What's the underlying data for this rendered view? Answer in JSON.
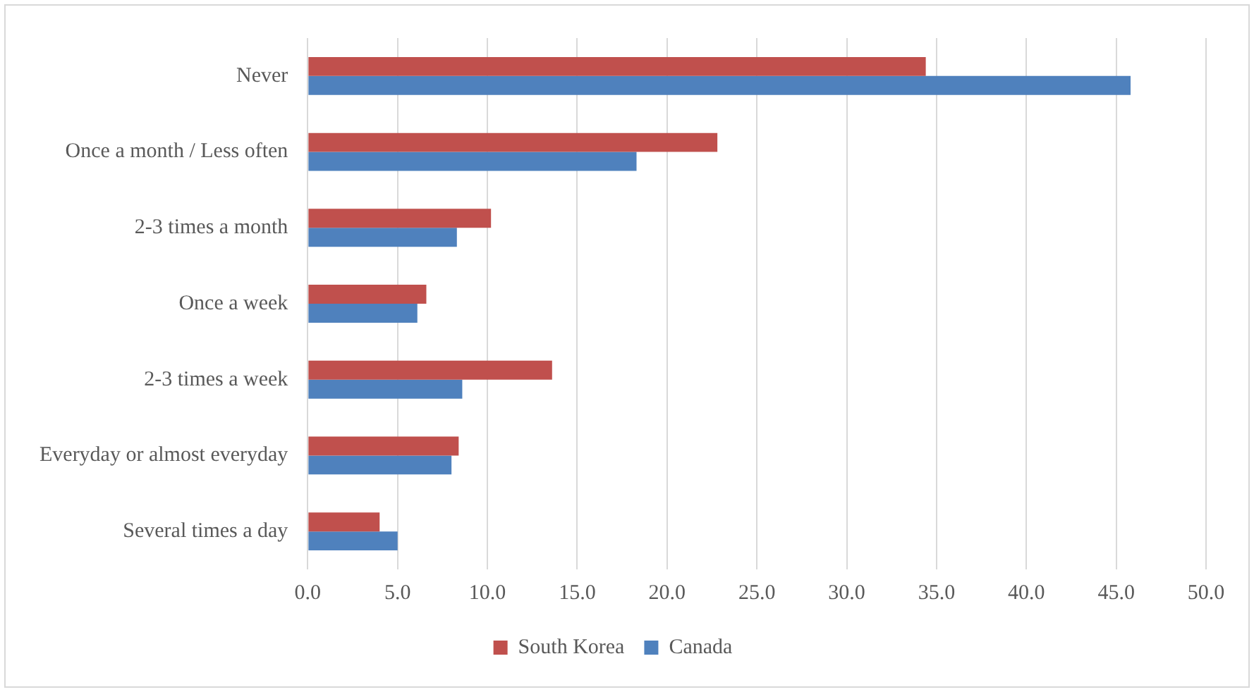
{
  "chart_data": {
    "type": "bar",
    "orientation": "horizontal",
    "categories": [
      "Never",
      "Once a month / Less often",
      "2-3 times a month",
      "Once a week",
      "2-3 times a week",
      "Everyday or almost everyday",
      "Several times a day"
    ],
    "series": [
      {
        "name": "South Korea",
        "color": "#c0504d",
        "values": [
          34.4,
          22.8,
          10.2,
          6.6,
          13.6,
          8.4,
          4.0
        ]
      },
      {
        "name": "Canada",
        "color": "#4f81bd",
        "values": [
          45.8,
          18.3,
          8.3,
          6.1,
          8.6,
          8.0,
          5.0
        ]
      }
    ],
    "xlim": [
      0,
      50
    ],
    "xticks": [
      {
        "value": 0,
        "label": "0.0"
      },
      {
        "value": 5,
        "label": "5.0"
      },
      {
        "value": 10,
        "label": "10.0"
      },
      {
        "value": 15,
        "label": "15.0"
      },
      {
        "value": 20,
        "label": "20.0"
      },
      {
        "value": 25,
        "label": "25.0"
      },
      {
        "value": 30,
        "label": "30.0"
      },
      {
        "value": 35,
        "label": "35.0"
      },
      {
        "value": 40,
        "label": "40.0"
      },
      {
        "value": 45,
        "label": "45.0"
      },
      {
        "value": 50,
        "label": "50.0"
      }
    ],
    "grid": "x",
    "legend": "bottom"
  }
}
